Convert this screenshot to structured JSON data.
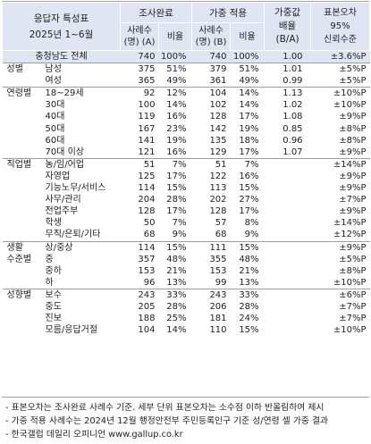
{
  "header": {
    "title_line1": "응답자 특성표",
    "title_line2": "2025년 1~6월",
    "group_survey": "조사완료",
    "group_weighted": "가중 적용",
    "col_count_a": "사례수\n(명) (A)",
    "col_ratio1": "비율",
    "col_count_b": "사례수\n(명) (B)",
    "col_ratio2": "비율",
    "col_weight": "가중값\n배율\n(B/A)",
    "col_conf": "표본오차\n95%\n신뢰수준"
  },
  "total": {
    "label": "충청남도 전체",
    "a": "740",
    "ra": "100%",
    "b": "740",
    "rb": "100%",
    "w": "1.00",
    "ci": "±3.6%P"
  },
  "groups": [
    {
      "name": "성별",
      "rows": [
        {
          "label": "남성",
          "a": "375",
          "ra": "51%",
          "b": "379",
          "rb": "51%",
          "w": "1.01",
          "ci": "±5%P"
        },
        {
          "label": "여성",
          "a": "365",
          "ra": "49%",
          "b": "361",
          "rb": "49%",
          "w": "0.99",
          "ci": "±5%P"
        }
      ]
    },
    {
      "name": "연령별",
      "rows": [
        {
          "label": "18~29세",
          "a": "92",
          "ra": "12%",
          "b": "104",
          "rb": "14%",
          "w": "1.13",
          "ci": "±10%P"
        },
        {
          "label": "30대",
          "a": "100",
          "ra": "14%",
          "b": "102",
          "rb": "14%",
          "w": "1.02",
          "ci": "±10%P"
        },
        {
          "label": "40대",
          "a": "119",
          "ra": "16%",
          "b": "128",
          "rb": "17%",
          "w": "1.08",
          "ci": "±9%P"
        },
        {
          "label": "50대",
          "a": "167",
          "ra": "23%",
          "b": "142",
          "rb": "19%",
          "w": "0.85",
          "ci": "±8%P"
        },
        {
          "label": "60대",
          "a": "141",
          "ra": "19%",
          "b": "135",
          "rb": "18%",
          "w": "0.96",
          "ci": "±8%P"
        },
        {
          "label": "70대 이상",
          "a": "121",
          "ra": "16%",
          "b": "129",
          "rb": "17%",
          "w": "1.07",
          "ci": "±9%P"
        }
      ]
    },
    {
      "name": "직업별",
      "rows": [
        {
          "label": "농/임/어업",
          "a": "51",
          "ra": "7%",
          "b": "51",
          "rb": "7%",
          "w": "",
          "ci": "±14%P"
        },
        {
          "label": "자영업",
          "a": "125",
          "ra": "17%",
          "b": "122",
          "rb": "16%",
          "w": "",
          "ci": "±9%P"
        },
        {
          "label": "기능노무/서비스",
          "a": "114",
          "ra": "15%",
          "b": "113",
          "rb": "15%",
          "w": "",
          "ci": "±9%P"
        },
        {
          "label": "사무/관리",
          "a": "204",
          "ra": "28%",
          "b": "202",
          "rb": "27%",
          "w": "",
          "ci": "±7%P"
        },
        {
          "label": "전업주부",
          "a": "128",
          "ra": "17%",
          "b": "128",
          "rb": "17%",
          "w": "",
          "ci": "±9%P"
        },
        {
          "label": "학생",
          "a": "50",
          "ra": "7%",
          "b": "57",
          "rb": "8%",
          "w": "",
          "ci": "±14%P"
        },
        {
          "label": "무직/은퇴/기타",
          "a": "68",
          "ra": "9%",
          "b": "68",
          "rb": "9%",
          "w": "",
          "ci": "±12%P"
        }
      ]
    },
    {
      "name": "생활\n수준별",
      "rows": [
        {
          "label": "상/중상",
          "a": "114",
          "ra": "15%",
          "b": "111",
          "rb": "15%",
          "w": "",
          "ci": "±9%P"
        },
        {
          "label": "중",
          "a": "357",
          "ra": "48%",
          "b": "355",
          "rb": "48%",
          "w": "",
          "ci": "±5%P"
        },
        {
          "label": "중하",
          "a": "153",
          "ra": "21%",
          "b": "153",
          "rb": "21%",
          "w": "",
          "ci": "±8%P"
        },
        {
          "label": "하",
          "a": "96",
          "ra": "13%",
          "b": "99",
          "rb": "13%",
          "w": "",
          "ci": "±10%P"
        }
      ]
    },
    {
      "name": "성향별",
      "rows": [
        {
          "label": "보수",
          "a": "243",
          "ra": "33%",
          "b": "243",
          "rb": "33%",
          "w": "",
          "ci": "±6%P"
        },
        {
          "label": "중도",
          "a": "205",
          "ra": "28%",
          "b": "206",
          "rb": "28%",
          "w": "",
          "ci": "±7%P"
        },
        {
          "label": "진보",
          "a": "188",
          "ra": "25%",
          "b": "181",
          "rb": "24%",
          "w": "",
          "ci": "±7%P"
        },
        {
          "label": "모름/응답거절",
          "a": "104",
          "ra": "14%",
          "b": "110",
          "rb": "15%",
          "w": "",
          "ci": "±10%P"
        }
      ]
    }
  ],
  "notes": [
    "- 표본오차는 조사완료 사례수 기준. 세부 단위 표본오차는 소수점 이하 반올림하여 제시",
    "- 가중 적용 사례수는 2024년 12월 행정안전부 주민등록인구 기준 성/연령 셀 가중 결과",
    "- 한국갤럽 데일리 오피니언 www.gallup.co.kr"
  ],
  "colors": {
    "header_bg": "#dfe5f3",
    "band_bg": "#f2f4fa",
    "rule": "#9aa0a8"
  }
}
